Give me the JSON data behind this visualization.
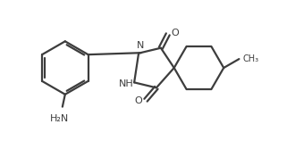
{
  "bg_color": "#ffffff",
  "line_color": "#3d3d3d",
  "line_width": 1.6,
  "font_size_label": 8.0,
  "font_size_small": 7.0,
  "N_label": "N",
  "NH_label": "NH",
  "O_label": "O",
  "H2N_label": "H₂N",
  "CH3_label": "CH₃",
  "figsize": [
    3.3,
    1.58
  ],
  "dpi": 100,
  "xlim": [
    0,
    3.3
  ],
  "ylim": [
    0,
    1.58
  ]
}
